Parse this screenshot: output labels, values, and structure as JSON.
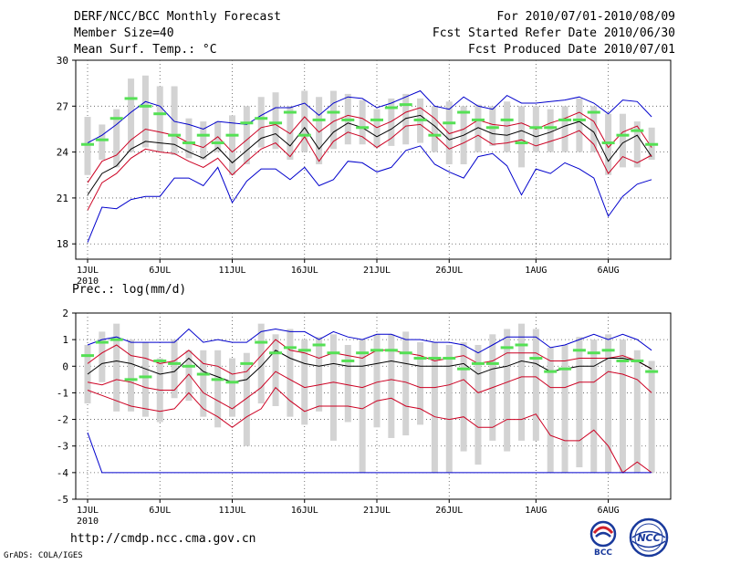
{
  "header": {
    "title": "DERF/NCC/BCC Monthly Forecast",
    "member_size": "Member Size=40",
    "variable": "Mean Surf. Temp.: °C",
    "period": "For 2010/07/01-2010/08/09",
    "refer_date": "Fcst Started Refer Date 2010/06/30",
    "produced_date": "Fcst Produced Date 2010/07/01"
  },
  "footer": {
    "url": "http://cmdp.ncc.cma.gov.cn",
    "grads_credit": "GrADS: COLA/IGES",
    "logo_left_text": "BCC",
    "logo_right_text": "NCC"
  },
  "colors": {
    "bar": "#d3d3d3",
    "mean_line": "#000000",
    "spread_line": "#cc0022",
    "extreme_line": "#0000cc",
    "dash": "#55e055",
    "grid": "#555555"
  },
  "chart_data": [
    {
      "type": "line",
      "title": "Mean Surf. Temp.: °C",
      "x_start": "2010-07-01",
      "x_tick_labels": [
        "1JUL",
        "6JUL",
        "11JUL",
        "16JUL",
        "21JUL",
        "26JUL",
        "1AUG",
        "6AUG"
      ],
      "x_tick_days": [
        1,
        6,
        11,
        16,
        21,
        26,
        32,
        37
      ],
      "x_year_label": "2010",
      "ylim": [
        17,
        30
      ],
      "yticks": [
        18,
        21,
        24,
        27,
        30
      ],
      "grid": true,
      "days": [
        1,
        2,
        3,
        4,
        5,
        6,
        7,
        8,
        9,
        10,
        11,
        12,
        13,
        14,
        15,
        16,
        17,
        18,
        19,
        20,
        21,
        22,
        23,
        24,
        25,
        26,
        27,
        28,
        29,
        30,
        31,
        32,
        33,
        34,
        35,
        36,
        37,
        38,
        39,
        40
      ],
      "bar_low": [
        22.5,
        23.5,
        23.0,
        24.0,
        24.3,
        24.0,
        23.8,
        23.6,
        23.5,
        24.0,
        22.5,
        23.2,
        24.3,
        24.2,
        23.5,
        24.0,
        23.2,
        24.2,
        24.5,
        24.5,
        24.3,
        24.4,
        24.5,
        24.6,
        24.0,
        23.2,
        23.2,
        24.0,
        24.4,
        24.0,
        23.0,
        24.0,
        24.0,
        24.0,
        24.0,
        24.0,
        22.5,
        23.0,
        23.0,
        23.5
      ],
      "bar_high": [
        26.3,
        25.8,
        26.8,
        28.8,
        29.0,
        28.3,
        28.3,
        26.2,
        26.0,
        26.0,
        26.4,
        27.0,
        27.6,
        27.9,
        27.0,
        28.0,
        27.6,
        28.0,
        27.8,
        27.4,
        26.8,
        27.5,
        27.8,
        27.5,
        27.0,
        27.3,
        27.0,
        27.1,
        27.0,
        27.3,
        27.0,
        27.0,
        26.8,
        27.0,
        27.5,
        27.0,
        26.5,
        26.5,
        26.0,
        25.6
      ],
      "series": [
        {
          "name": "max",
          "color": "#0000cc",
          "values": [
            24.6,
            25.1,
            25.8,
            26.6,
            27.3,
            27.0,
            26.0,
            25.8,
            25.5,
            26.0,
            25.9,
            25.8,
            26.4,
            26.9,
            26.9,
            27.2,
            26.4,
            27.2,
            27.6,
            27.5,
            26.9,
            27.2,
            27.6,
            28.0,
            27.0,
            26.8,
            27.6,
            27.0,
            26.8,
            27.7,
            27.2,
            27.2,
            27.3,
            27.4,
            27.6,
            27.2,
            26.5,
            27.4,
            27.3,
            26.3
          ]
        },
        {
          "name": "mean+sd",
          "color": "#cc0022",
          "values": [
            22.0,
            23.4,
            23.8,
            24.8,
            25.5,
            25.3,
            25.1,
            24.6,
            24.3,
            25.0,
            24.0,
            24.8,
            25.6,
            25.8,
            25.2,
            26.3,
            25.3,
            26.0,
            26.4,
            26.2,
            25.6,
            26.0,
            26.6,
            26.9,
            26.2,
            25.2,
            25.5,
            26.1,
            25.8,
            25.7,
            25.9,
            25.5,
            25.9,
            26.2,
            26.6,
            26.0,
            24.3,
            25.3,
            25.7,
            24.3
          ]
        },
        {
          "name": "mean",
          "color": "#000000",
          "values": [
            21.2,
            22.6,
            23.1,
            24.2,
            24.7,
            24.6,
            24.5,
            24.0,
            23.6,
            24.3,
            23.3,
            24.1,
            24.9,
            25.2,
            24.4,
            25.6,
            24.2,
            25.3,
            25.9,
            25.6,
            25.0,
            25.5,
            26.2,
            26.4,
            25.7,
            24.8,
            25.1,
            25.6,
            25.2,
            25.1,
            25.4,
            25.0,
            25.3,
            25.7,
            26.0,
            25.3,
            23.4,
            24.6,
            25.1,
            23.7
          ]
        },
        {
          "name": "mean-sd",
          "color": "#cc0022",
          "values": [
            20.2,
            22.0,
            22.6,
            23.6,
            24.2,
            24.0,
            23.9,
            23.4,
            23.0,
            23.6,
            22.5,
            23.4,
            24.2,
            24.6,
            23.7,
            25.0,
            23.4,
            24.7,
            25.3,
            25.0,
            24.3,
            24.9,
            25.7,
            25.8,
            25.1,
            24.2,
            24.6,
            25.1,
            24.5,
            24.6,
            24.8,
            24.4,
            24.7,
            25.0,
            25.4,
            24.5,
            22.6,
            23.7,
            23.3,
            23.8
          ]
        },
        {
          "name": "min",
          "color": "#0000cc",
          "values": [
            18.1,
            20.4,
            20.3,
            20.9,
            21.1,
            21.1,
            22.3,
            22.3,
            21.8,
            23.0,
            20.7,
            22.1,
            22.9,
            22.9,
            22.2,
            23.0,
            21.8,
            22.2,
            23.4,
            23.3,
            22.7,
            23.0,
            24.1,
            24.4,
            23.2,
            22.7,
            22.3,
            23.7,
            23.9,
            23.1,
            21.2,
            22.9,
            22.6,
            23.3,
            22.9,
            22.3,
            19.8,
            21.1,
            21.9,
            22.2
          ]
        }
      ],
      "dashes": [
        24.5,
        24.8,
        26.2,
        27.5,
        27.0,
        26.5,
        25.1,
        24.6,
        25.1,
        24.6,
        25.1,
        25.9,
        26.2,
        25.9,
        26.6,
        25.1,
        26.1,
        26.6,
        26.1,
        25.6,
        26.1,
        26.9,
        27.1,
        26.1,
        25.1,
        25.9,
        26.6,
        26.1,
        25.6,
        26.1,
        24.6,
        25.6,
        25.6,
        26.1,
        26.1,
        26.6,
        24.6,
        25.1,
        25.4,
        24.5
      ]
    },
    {
      "type": "line",
      "title": "Prec.: log(mm/d)",
      "x_start": "2010-07-01",
      "x_tick_labels": [
        "1JUL",
        "6JUL",
        "11JUL",
        "16JUL",
        "21JUL",
        "26JUL",
        "1AUG",
        "6AUG"
      ],
      "x_tick_days": [
        1,
        6,
        11,
        16,
        21,
        26,
        32,
        37
      ],
      "x_year_label": "2010",
      "ylim": [
        -5,
        2
      ],
      "yticks": [
        -5,
        -4,
        -3,
        -2,
        -1,
        0,
        1,
        2
      ],
      "grid": true,
      "days": [
        1,
        2,
        3,
        4,
        5,
        6,
        7,
        8,
        9,
        10,
        11,
        12,
        13,
        14,
        15,
        16,
        17,
        18,
        19,
        20,
        21,
        22,
        23,
        24,
        25,
        26,
        27,
        28,
        29,
        30,
        31,
        32,
        33,
        34,
        35,
        36,
        37,
        38,
        39,
        40
      ],
      "bar_low": [
        -1.4,
        -0.6,
        -1.7,
        -1.7,
        -1.9,
        -2.1,
        -1.2,
        -1.3,
        -1.9,
        -2.3,
        -1.9,
        -3.0,
        -1.4,
        -1.5,
        -1.9,
        -2.2,
        -1.7,
        -2.8,
        -2.1,
        -4.0,
        -2.3,
        -2.7,
        -2.6,
        -2.2,
        -4.0,
        -4.0,
        -3.2,
        -3.7,
        -2.8,
        -3.2,
        -2.8,
        -2.8,
        -4.0,
        -4.0,
        -3.8,
        -4.0,
        -4.0,
        -4.0,
        -4.0,
        -4.0
      ],
      "bar_high": [
        0.8,
        1.3,
        1.6,
        1.0,
        0.9,
        0.3,
        1.0,
        0.6,
        0.6,
        0.6,
        0.3,
        0.5,
        1.6,
        1.2,
        1.4,
        1.0,
        1.1,
        1.2,
        0.8,
        1.0,
        1.2,
        1.2,
        1.3,
        0.9,
        0.9,
        0.8,
        0.9,
        0.8,
        1.2,
        1.4,
        1.6,
        1.4,
        0.7,
        0.8,
        1.1,
        1.0,
        1.2,
        1.0,
        0.6,
        0.2
      ],
      "series": [
        {
          "name": "max",
          "color": "#0000cc",
          "values": [
            0.8,
            1.0,
            1.1,
            0.9,
            0.9,
            0.9,
            0.9,
            1.4,
            0.9,
            1.0,
            0.9,
            0.9,
            1.3,
            1.4,
            1.3,
            1.3,
            1.0,
            1.3,
            1.1,
            1.0,
            1.2,
            1.2,
            1.0,
            1.0,
            0.9,
            0.9,
            0.8,
            0.5,
            0.8,
            1.1,
            1.1,
            1.1,
            0.7,
            0.8,
            1.0,
            1.2,
            1.0,
            1.2,
            1.0,
            0.6
          ]
        },
        {
          "name": "mean+sd",
          "color": "#cc0022",
          "values": [
            0.1,
            0.5,
            0.8,
            0.4,
            0.3,
            0.1,
            0.2,
            0.6,
            0.1,
            0.0,
            -0.3,
            -0.2,
            0.4,
            1.0,
            0.6,
            0.5,
            0.3,
            0.5,
            0.4,
            0.3,
            0.6,
            0.6,
            0.5,
            0.4,
            0.2,
            0.3,
            0.4,
            0.1,
            0.2,
            0.5,
            0.5,
            0.5,
            0.2,
            0.2,
            0.3,
            0.3,
            0.3,
            0.4,
            0.2,
            -0.1
          ]
        },
        {
          "name": "mean",
          "color": "#000000",
          "values": [
            -0.3,
            0.1,
            0.2,
            0.1,
            -0.1,
            -0.3,
            -0.2,
            0.3,
            -0.2,
            -0.4,
            -0.6,
            -0.5,
            0.0,
            0.6,
            0.3,
            0.1,
            0.0,
            0.1,
            0.0,
            0.0,
            0.1,
            0.2,
            0.1,
            0.0,
            0.0,
            0.0,
            0.1,
            -0.3,
            -0.1,
            0.0,
            0.2,
            0.1,
            -0.2,
            -0.1,
            0.0,
            0.0,
            0.3,
            0.3,
            0.2,
            -0.1
          ]
        },
        {
          "name": "mean-sd",
          "color": "#cc0022",
          "values": [
            -0.6,
            -0.7,
            -0.5,
            -0.6,
            -0.8,
            -0.9,
            -0.9,
            -0.3,
            -1.0,
            -1.3,
            -1.6,
            -1.2,
            -0.8,
            -0.2,
            -0.5,
            -0.8,
            -0.7,
            -0.6,
            -0.7,
            -0.8,
            -0.6,
            -0.5,
            -0.6,
            -0.8,
            -0.8,
            -0.7,
            -0.5,
            -1.0,
            -0.8,
            -0.6,
            -0.4,
            -0.4,
            -0.8,
            -0.8,
            -0.6,
            -0.6,
            -0.2,
            -0.3,
            -0.5,
            -1.0
          ]
        },
        {
          "name": "mean-2sd",
          "color": "#cc0022",
          "values": [
            -0.9,
            -1.1,
            -1.3,
            -1.5,
            -1.6,
            -1.7,
            -1.6,
            -1.0,
            -1.6,
            -1.9,
            -2.3,
            -1.9,
            -1.6,
            -0.8,
            -1.3,
            -1.7,
            -1.5,
            -1.5,
            -1.5,
            -1.6,
            -1.3,
            -1.2,
            -1.5,
            -1.6,
            -1.9,
            -2.0,
            -1.9,
            -2.3,
            -2.3,
            -2.0,
            -2.0,
            -1.8,
            -2.6,
            -2.8,
            -2.8,
            -2.4,
            -3.0,
            -4.0,
            -3.6,
            -4.0
          ]
        },
        {
          "name": "min",
          "color": "#0000cc",
          "values": [
            -2.5,
            -4.0,
            -4.0,
            -4.0,
            -4.0,
            -4.0,
            -4.0,
            -4.0,
            -4.0,
            -4.0,
            -4.0,
            -4.0,
            -4.0,
            -4.0,
            -4.0,
            -4.0,
            -4.0,
            -4.0,
            -4.0,
            -4.0,
            -4.0,
            -4.0,
            -4.0,
            -4.0,
            -4.0,
            -4.0,
            -4.0,
            -4.0,
            -4.0,
            -4.0,
            -4.0,
            -4.0,
            -4.0,
            -4.0,
            -4.0,
            -4.0,
            -4.0,
            -4.0,
            -4.0,
            -4.0
          ]
        }
      ],
      "dashes": [
        0.4,
        0.9,
        1.0,
        -0.5,
        -0.4,
        0.2,
        0.1,
        0.0,
        -0.3,
        -0.5,
        -0.6,
        0.1,
        0.9,
        0.5,
        0.7,
        0.6,
        0.8,
        0.5,
        0.2,
        0.5,
        0.6,
        0.6,
        0.5,
        0.3,
        0.3,
        0.3,
        -0.1,
        0.1,
        0.1,
        0.7,
        0.8,
        0.3,
        -0.2,
        -0.1,
        0.6,
        0.5,
        0.6,
        0.2,
        0.2,
        -0.2
      ]
    }
  ]
}
